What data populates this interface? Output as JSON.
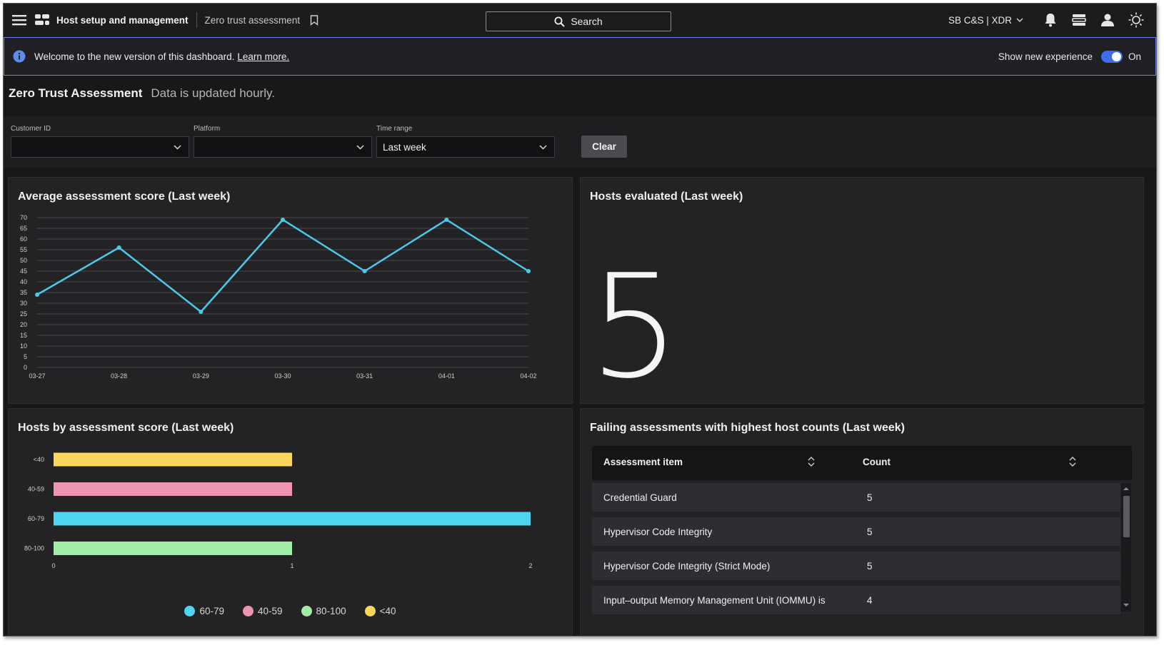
{
  "topbar": {
    "app_title": "Host setup and management",
    "breadcrumb": "Zero trust assessment",
    "search_label": "Search",
    "tenant": "SB C&S | XDR"
  },
  "banner": {
    "message": "Welcome to the new version of this dashboard.",
    "link": "Learn more.",
    "toggle_label": "Show new experience",
    "toggle_state": "On"
  },
  "heading": {
    "title": "Zero Trust Assessment",
    "subtitle": "Data is updated hourly."
  },
  "filters": {
    "customer_id": {
      "label": "Customer ID",
      "value": ""
    },
    "platform": {
      "label": "Platform",
      "value": ""
    },
    "time_range": {
      "label": "Time range",
      "value": "Last week"
    },
    "clear_label": "Clear"
  },
  "panels": {
    "avg_score_title": "Average assessment score (Last week)",
    "hosts_evaluated_title": "Hosts evaluated (Last week)",
    "hosts_evaluated_value": "5",
    "hosts_by_score_title": "Hosts by assessment score (Last week)",
    "failing_title": "Failing assessments with highest host counts (Last week)"
  },
  "table": {
    "columns": [
      "Assessment item",
      "Count"
    ],
    "rows": [
      {
        "item": "Credential Guard",
        "count": "5"
      },
      {
        "item": "Hypervisor Code Integrity",
        "count": "5"
      },
      {
        "item": "Hypervisor Code Integrity (Strict Mode)",
        "count": "5"
      },
      {
        "item": "Input–output Memory Management Unit (IOMMU) is",
        "count": "4"
      }
    ]
  },
  "chart_data": [
    {
      "type": "line",
      "x": [
        "03-27",
        "03-28",
        "03-29",
        "03-30",
        "03-31",
        "04-01",
        "04-02"
      ],
      "series": [
        {
          "values": [
            34,
            56,
            26,
            69,
            45,
            69,
            45
          ],
          "color": "#4cc9ea"
        }
      ],
      "title": "Average assessment score (Last week)",
      "xlabel": "",
      "ylabel": "",
      "ylim": [
        0,
        70
      ],
      "yticks": [
        0,
        5,
        10,
        15,
        20,
        25,
        30,
        35,
        40,
        45,
        50,
        55,
        60,
        65,
        70
      ],
      "grid": true
    },
    {
      "type": "bar",
      "orientation": "horizontal",
      "categories": [
        "<40",
        "40-59",
        "60-79",
        "80-100"
      ],
      "values": [
        1,
        1,
        2,
        1
      ],
      "colors": [
        "#f9d65c",
        "#ee93b4",
        "#4dd5f2",
        "#a1eda8"
      ],
      "title": "Hosts by assessment score (Last week)",
      "xlim": [
        0,
        2
      ],
      "xticks": [
        0,
        1,
        2
      ],
      "legend": {
        "placement": "bottom",
        "items": [
          {
            "label": "60-79",
            "color": "#4dd5f2"
          },
          {
            "label": "40-59",
            "color": "#ee93b4"
          },
          {
            "label": "80-100",
            "color": "#a1eda8"
          },
          {
            "label": "<40",
            "color": "#f9d65c"
          }
        ]
      }
    }
  ]
}
